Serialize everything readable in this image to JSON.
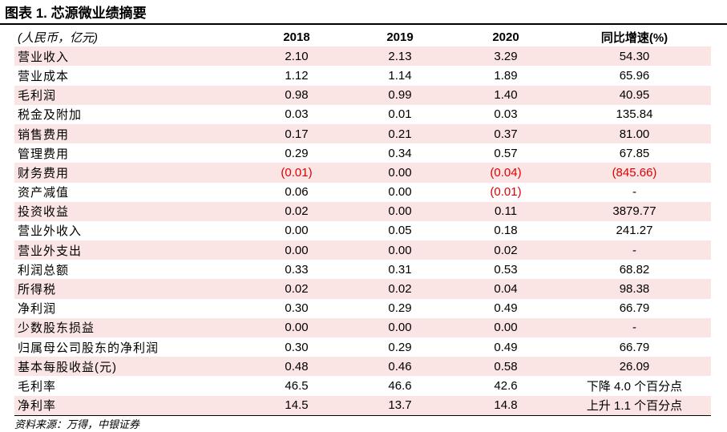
{
  "title": "图表 1. 芯源微业绩摘要",
  "table": {
    "header": [
      "(人民币，亿元)",
      "2018",
      "2019",
      "2020",
      "同比增速(%)"
    ],
    "rows": [
      [
        "营业收入",
        "2.10",
        "2.13",
        "3.29",
        "54.30"
      ],
      [
        "营业成本",
        "1.12",
        "1.14",
        "1.89",
        "65.96"
      ],
      [
        "毛利润",
        "0.98",
        "0.99",
        "1.40",
        "40.95"
      ],
      [
        "税金及附加",
        "0.03",
        "0.01",
        "0.03",
        "135.84"
      ],
      [
        "销售费用",
        "0.17",
        "0.21",
        "0.37",
        "81.00"
      ],
      [
        "管理费用",
        "0.29",
        "0.34",
        "0.57",
        "67.85"
      ],
      [
        "财务费用",
        "(0.01)",
        "0.00",
        "(0.04)",
        "(845.66)"
      ],
      [
        "资产减值",
        "0.06",
        "0.00",
        "(0.01)",
        "-"
      ],
      [
        "投资收益",
        "0.02",
        "0.00",
        "0.11",
        "3879.77"
      ],
      [
        "营业外收入",
        "0.00",
        "0.05",
        "0.18",
        "241.27"
      ],
      [
        "营业外支出",
        "0.00",
        "0.00",
        "0.02",
        "-"
      ],
      [
        "利润总额",
        "0.33",
        "0.31",
        "0.53",
        "68.82"
      ],
      [
        "所得税",
        "0.02",
        "0.02",
        "0.04",
        "98.38"
      ],
      [
        "净利润",
        "0.30",
        "0.29",
        "0.49",
        "66.79"
      ],
      [
        "少数股东损益",
        "0.00",
        "0.00",
        "0.00",
        "-"
      ],
      [
        "归属母公司股东的净利润",
        "0.30",
        "0.29",
        "0.49",
        "66.79"
      ],
      [
        "基本每股收益(元)",
        "0.48",
        "0.46",
        "0.58",
        "26.09"
      ],
      [
        "毛利率",
        "46.5",
        "46.6",
        "42.6",
        "下降 4.0 个百分点"
      ],
      [
        "净利率",
        "14.5",
        "13.7",
        "14.8",
        "上升 1.1 个百分点"
      ]
    ]
  },
  "source": "资料来源：万得，中银证券"
}
